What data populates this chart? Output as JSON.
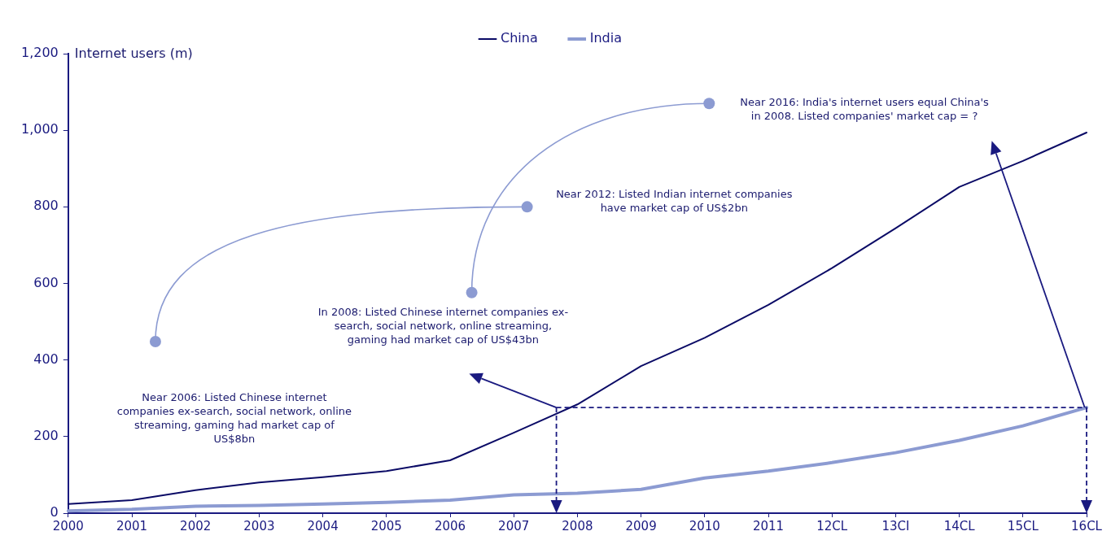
{
  "chart_data": {
    "type": "line",
    "ylabel": "Internet users (m)",
    "categories": [
      "2000",
      "2001",
      "2002",
      "2003",
      "2004",
      "2005",
      "2006",
      "2007",
      "2008",
      "2009",
      "2010",
      "2011",
      "12CL",
      "13CI",
      "14CL",
      "15CL",
      "16CL"
    ],
    "series": [
      {
        "name": "China",
        "color": "#0b0b66",
        "values": [
          24,
          34,
          60,
          80,
          94,
          110,
          138,
          210,
          284,
          384,
          458,
          544,
          640,
          744,
          852,
          920,
          994
        ]
      },
      {
        "name": "India",
        "color": "#8c9bd2",
        "values": [
          6,
          10,
          18,
          20,
          24,
          28,
          34,
          48,
          52,
          62,
          92,
          110,
          132,
          158,
          190,
          228,
          276
        ]
      }
    ],
    "ylim": [
      0,
      1200
    ],
    "yticks": [
      0,
      200,
      400,
      600,
      800,
      {
        "value": 1000,
        "label": "1,000"
      },
      {
        "value": 1200,
        "label": "1,200"
      }
    ],
    "legend": "top",
    "marker": "none",
    "ref_lines": [
      {
        "axis": "y",
        "value": 276,
        "line_style": "dashed",
        "color": "#1a1a80"
      }
    ],
    "annotations": [
      "Near 2006: Listed Chinese internet companies ex-search, social network, online streaming, gaming had market cap of US$8bn",
      "In 2008: Listed Chinese internet companies ex-search, social network, online streaming, gaming had market cap of US$43bn",
      "Near 2012: Listed Indian internet companies have market cap of US$2bn",
      "Near 2016: India's internet users equal China's in 2008. Listed companies' market cap = ?"
    ]
  }
}
